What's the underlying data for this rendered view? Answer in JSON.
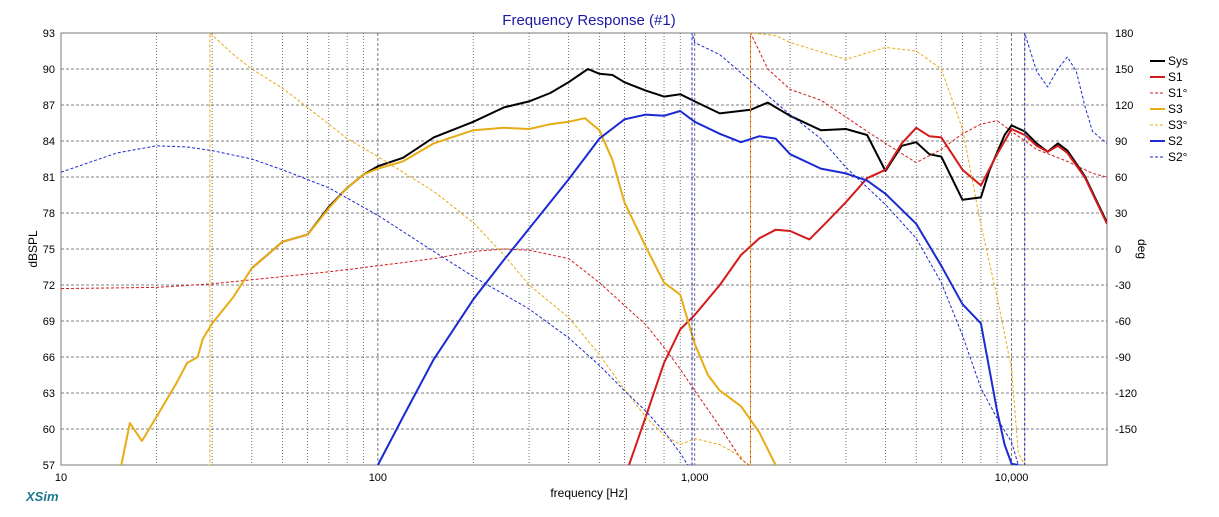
{
  "chart_data": {
    "type": "line",
    "title": "Frequency Response (#1)",
    "xlabel": "frequency [Hz]",
    "ylabel": "dBSPL",
    "y2label": "deg",
    "xscale": "log",
    "xlim": [
      10,
      20000
    ],
    "ylim": [
      57,
      93
    ],
    "y2lim": [
      -180,
      180
    ],
    "grid": true,
    "legend_position": "right",
    "x_tick_labels": [
      {
        "value": 10,
        "label": "10"
      },
      {
        "value": 100,
        "label": "100"
      },
      {
        "value": 1000,
        "label": "1,000"
      },
      {
        "value": 10000,
        "label": "10,000"
      }
    ],
    "y_ticks": [
      93,
      90,
      87,
      84,
      81,
      78,
      75,
      72,
      69,
      66,
      63,
      60,
      57
    ],
    "y2_ticks": [
      180,
      150,
      120,
      90,
      60,
      30,
      0,
      -30,
      -60,
      -90,
      -120,
      -150
    ],
    "series": [
      {
        "name": "Sys",
        "color": "#000000",
        "axis": "left",
        "style": "solid",
        "width": 2,
        "points": [
          [
            40,
            73.4
          ],
          [
            50,
            75.6
          ],
          [
            60,
            76.2
          ],
          [
            70,
            78.5
          ],
          [
            80,
            80.1
          ],
          [
            90,
            81.2
          ],
          [
            100,
            81.9
          ],
          [
            120,
            82.6
          ],
          [
            150,
            84.3
          ],
          [
            200,
            85.6
          ],
          [
            250,
            86.8
          ],
          [
            300,
            87.3
          ],
          [
            350,
            88.0
          ],
          [
            400,
            88.9
          ],
          [
            460,
            90.0
          ],
          [
            500,
            89.6
          ],
          [
            550,
            89.5
          ],
          [
            600,
            88.9
          ],
          [
            700,
            88.2
          ],
          [
            800,
            87.7
          ],
          [
            900,
            87.9
          ],
          [
            1000,
            87.3
          ],
          [
            1200,
            86.3
          ],
          [
            1500,
            86.6
          ],
          [
            1700,
            87.2
          ],
          [
            2000,
            86.1
          ],
          [
            2500,
            84.9
          ],
          [
            3000,
            85.0
          ],
          [
            3500,
            84.5
          ],
          [
            4000,
            81.5
          ],
          [
            4500,
            83.6
          ],
          [
            5000,
            83.9
          ],
          [
            5500,
            82.9
          ],
          [
            6000,
            82.7
          ],
          [
            7000,
            79.1
          ],
          [
            8000,
            79.3
          ],
          [
            8500,
            81.5
          ],
          [
            9500,
            84.5
          ],
          [
            10000,
            85.3
          ],
          [
            11000,
            84.8
          ],
          [
            12000,
            83.8
          ],
          [
            13000,
            83.1
          ],
          [
            14000,
            83.8
          ],
          [
            15000,
            83.2
          ],
          [
            17000,
            81.1
          ],
          [
            20000,
            77.2
          ]
        ]
      },
      {
        "name": "S1",
        "color": "#d41b1b",
        "axis": "left",
        "style": "solid",
        "width": 2,
        "points": [
          [
            620,
            57
          ],
          [
            700,
            61
          ],
          [
            800,
            65.5
          ],
          [
            900,
            68.3
          ],
          [
            1000,
            69.5
          ],
          [
            1200,
            72.0
          ],
          [
            1400,
            74.5
          ],
          [
            1600,
            75.9
          ],
          [
            1800,
            76.6
          ],
          [
            2000,
            76.5
          ],
          [
            2300,
            75.8
          ],
          [
            2600,
            77.2
          ],
          [
            3000,
            78.9
          ],
          [
            3500,
            80.9
          ],
          [
            4000,
            81.6
          ],
          [
            4500,
            83.8
          ],
          [
            5000,
            85.1
          ],
          [
            5500,
            84.4
          ],
          [
            6000,
            84.3
          ],
          [
            7000,
            81.6
          ],
          [
            8000,
            80.3
          ],
          [
            9000,
            82.9
          ],
          [
            10000,
            85.0
          ],
          [
            11000,
            84.5
          ],
          [
            12000,
            83.6
          ],
          [
            13000,
            83.1
          ],
          [
            14000,
            83.6
          ],
          [
            15000,
            83.0
          ],
          [
            17000,
            81.0
          ],
          [
            20000,
            77.1
          ]
        ]
      },
      {
        "name": "S1°",
        "color": "#d41b1b",
        "axis": "right",
        "style": "dashed",
        "width": 1,
        "points": [
          [
            10,
            -33
          ],
          [
            20,
            -32
          ],
          [
            30,
            -29
          ],
          [
            50,
            -23
          ],
          [
            70,
            -19
          ],
          [
            100,
            -14
          ],
          [
            150,
            -8
          ],
          [
            200,
            -2
          ],
          [
            250,
            0
          ],
          [
            300,
            -1
          ],
          [
            400,
            -8
          ],
          [
            500,
            -28
          ],
          [
            600,
            -47
          ],
          [
            700,
            -63
          ],
          [
            800,
            -82
          ],
          [
            900,
            -100
          ],
          [
            1000,
            -118
          ],
          [
            1200,
            -148
          ],
          [
            1400,
            -175
          ],
          [
            1480,
            -180
          ],
          [
            1500,
            180
          ],
          [
            1700,
            150
          ],
          [
            2000,
            133
          ],
          [
            2500,
            124
          ],
          [
            3000,
            110
          ],
          [
            3500,
            98
          ],
          [
            4000,
            88
          ],
          [
            5000,
            72
          ],
          [
            6000,
            83
          ],
          [
            7000,
            96
          ],
          [
            8000,
            104
          ],
          [
            9000,
            107
          ],
          [
            10000,
            98
          ],
          [
            12000,
            83
          ],
          [
            15000,
            73
          ],
          [
            18000,
            63
          ],
          [
            20000,
            60
          ]
        ]
      },
      {
        "name": "S3",
        "color": "#e8ac14",
        "axis": "left",
        "style": "solid",
        "width": 2,
        "points": [
          [
            15.5,
            57
          ],
          [
            16.5,
            60.5
          ],
          [
            18,
            59
          ],
          [
            20,
            61
          ],
          [
            23,
            63.7
          ],
          [
            25,
            65.5
          ],
          [
            27,
            66
          ],
          [
            28,
            67.5
          ],
          [
            30,
            68.8
          ],
          [
            35,
            71
          ],
          [
            40,
            73.4
          ],
          [
            50,
            75.6
          ],
          [
            60,
            76.2
          ],
          [
            70,
            78.4
          ],
          [
            80,
            80.1
          ],
          [
            90,
            81.2
          ],
          [
            100,
            81.7
          ],
          [
            120,
            82.3
          ],
          [
            150,
            83.8
          ],
          [
            200,
            84.9
          ],
          [
            250,
            85.1
          ],
          [
            300,
            85.0
          ],
          [
            350,
            85.4
          ],
          [
            400,
            85.6
          ],
          [
            450,
            85.9
          ],
          [
            500,
            84.9
          ],
          [
            550,
            82.4
          ],
          [
            600,
            78.9
          ],
          [
            700,
            75.2
          ],
          [
            800,
            72.2
          ],
          [
            900,
            71.2
          ],
          [
            1000,
            67.1
          ],
          [
            1100,
            64.5
          ],
          [
            1200,
            63.2
          ],
          [
            1400,
            61.9
          ],
          [
            1600,
            59.7
          ],
          [
            1800,
            57
          ]
        ]
      },
      {
        "name": "S3°",
        "color": "#e8ac14",
        "axis": "right",
        "style": "dashed",
        "width": 1,
        "points": [
          [
            29,
            -180
          ],
          [
            29.5,
            180
          ],
          [
            35,
            162
          ],
          [
            40,
            150
          ],
          [
            50,
            134
          ],
          [
            60,
            118
          ],
          [
            70,
            104
          ],
          [
            80,
            92
          ],
          [
            100,
            77
          ],
          [
            120,
            64
          ],
          [
            150,
            48
          ],
          [
            200,
            22
          ],
          [
            250,
            -5
          ],
          [
            300,
            -30
          ],
          [
            400,
            -57
          ],
          [
            500,
            -88
          ],
          [
            600,
            -117
          ],
          [
            700,
            -140
          ],
          [
            800,
            -155
          ],
          [
            900,
            -163
          ],
          [
            1000,
            -158
          ],
          [
            1200,
            -163
          ],
          [
            1400,
            -173
          ],
          [
            1450,
            -180
          ],
          [
            1500,
            180
          ],
          [
            1800,
            178
          ],
          [
            2000,
            172
          ],
          [
            3000,
            158
          ],
          [
            4000,
            168
          ],
          [
            5000,
            165
          ],
          [
            6000,
            150
          ],
          [
            7000,
            100
          ],
          [
            8000,
            20
          ],
          [
            9000,
            -40
          ],
          [
            10000,
            -100
          ],
          [
            10500,
            -170
          ],
          [
            11000,
            180
          ]
        ]
      },
      {
        "name": "S2",
        "color": "#1b2ad2",
        "axis": "left",
        "style": "solid",
        "width": 2,
        "points": [
          [
            100,
            57
          ],
          [
            120,
            61
          ],
          [
            150,
            65.8
          ],
          [
            200,
            70.8
          ],
          [
            250,
            74.1
          ],
          [
            300,
            76.7
          ],
          [
            400,
            80.8
          ],
          [
            500,
            84.2
          ],
          [
            600,
            85.8
          ],
          [
            700,
            86.2
          ],
          [
            800,
            86.1
          ],
          [
            900,
            86.5
          ],
          [
            1000,
            85.6
          ],
          [
            1200,
            84.6
          ],
          [
            1400,
            83.9
          ],
          [
            1600,
            84.4
          ],
          [
            1800,
            84.2
          ],
          [
            2000,
            82.9
          ],
          [
            2500,
            81.7
          ],
          [
            3000,
            81.3
          ],
          [
            3500,
            80.7
          ],
          [
            4000,
            79.6
          ],
          [
            5000,
            77.1
          ],
          [
            6000,
            73.6
          ],
          [
            7000,
            70.4
          ],
          [
            8000,
            68.8
          ],
          [
            9000,
            61.5
          ],
          [
            9500,
            58.7
          ],
          [
            10000,
            57.1
          ],
          [
            10500,
            57
          ]
        ]
      },
      {
        "name": "S2°",
        "color": "#1b2ad2",
        "axis": "right",
        "style": "dashed",
        "width": 1,
        "points": [
          [
            10,
            64
          ],
          [
            15,
            80
          ],
          [
            20,
            86
          ],
          [
            25,
            85
          ],
          [
            30,
            82
          ],
          [
            40,
            75
          ],
          [
            50,
            66
          ],
          [
            70,
            51
          ],
          [
            100,
            28
          ],
          [
            150,
            -2
          ],
          [
            200,
            -23
          ],
          [
            300,
            -50
          ],
          [
            400,
            -74
          ],
          [
            500,
            -97
          ],
          [
            600,
            -118
          ],
          [
            700,
            -135
          ],
          [
            800,
            -152
          ],
          [
            900,
            -170
          ],
          [
            950,
            -180
          ],
          [
            980,
            180
          ],
          [
            1000,
            172
          ],
          [
            1200,
            162
          ],
          [
            1500,
            140
          ],
          [
            2000,
            112
          ],
          [
            2500,
            92
          ],
          [
            3000,
            68
          ],
          [
            4000,
            37
          ],
          [
            5000,
            9
          ],
          [
            6000,
            -28
          ],
          [
            7000,
            -72
          ],
          [
            8000,
            -116
          ],
          [
            9000,
            -141
          ],
          [
            10000,
            -161
          ],
          [
            10500,
            -180
          ],
          [
            11000,
            180
          ],
          [
            12000,
            148
          ],
          [
            13000,
            135
          ],
          [
            14000,
            150
          ],
          [
            15000,
            160
          ],
          [
            16000,
            148
          ],
          [
            17000,
            120
          ],
          [
            18000,
            98
          ],
          [
            20000,
            88
          ]
        ]
      }
    ]
  },
  "brand": "XSim"
}
